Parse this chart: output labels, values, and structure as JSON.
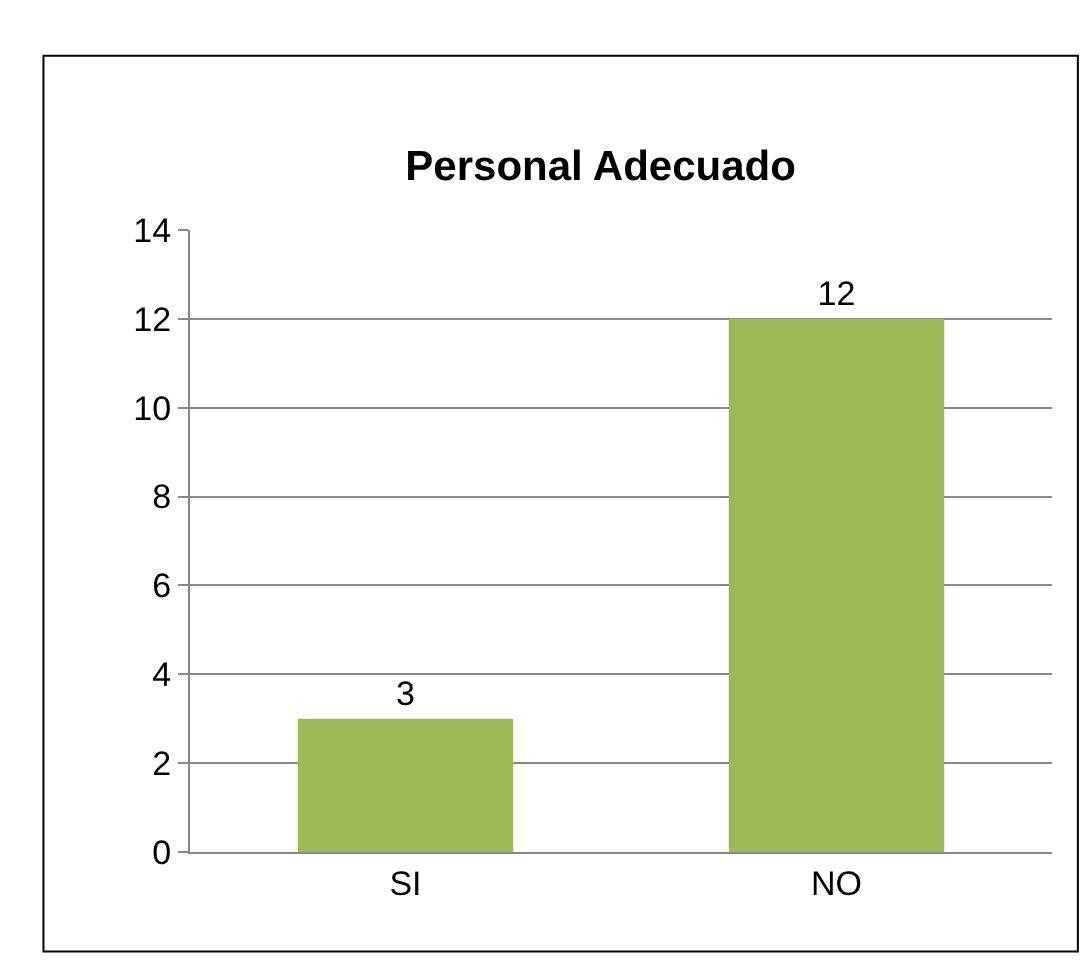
{
  "chart_data": {
    "type": "bar",
    "title": "Personal Adecuado",
    "categories": [
      "SI",
      "NO"
    ],
    "values": [
      3,
      12
    ],
    "color": "#9bbb59",
    "ylim": [
      0,
      14
    ],
    "yticks": [
      0,
      2,
      4,
      6,
      8,
      10,
      12,
      14
    ],
    "grid": "y",
    "data_labels": true,
    "legend": false
  }
}
